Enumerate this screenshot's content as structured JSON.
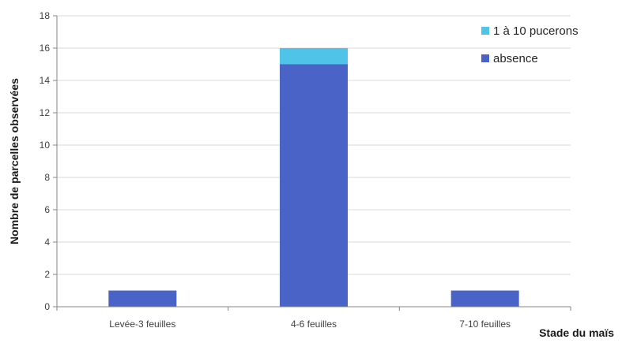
{
  "chart_data": {
    "type": "bar",
    "stacked": true,
    "categories": [
      "Levée-3 feuilles",
      "4-6 feuilles",
      "7-10 feuilles"
    ],
    "series": [
      {
        "name": "absence",
        "values": [
          1,
          15,
          1
        ],
        "color": "#4a63c7"
      },
      {
        "name": "1 à 10 pucerons",
        "values": [
          0,
          1,
          0
        ],
        "color": "#4fc3e8"
      }
    ],
    "ylabel": "Nombre de parcelles observées",
    "xlabel": "Stade du maïs",
    "ylim": [
      0,
      18
    ],
    "yticks": [
      0,
      2,
      4,
      6,
      8,
      10,
      12,
      14,
      16,
      18
    ],
    "grid": true,
    "legend_position": "top-right"
  }
}
